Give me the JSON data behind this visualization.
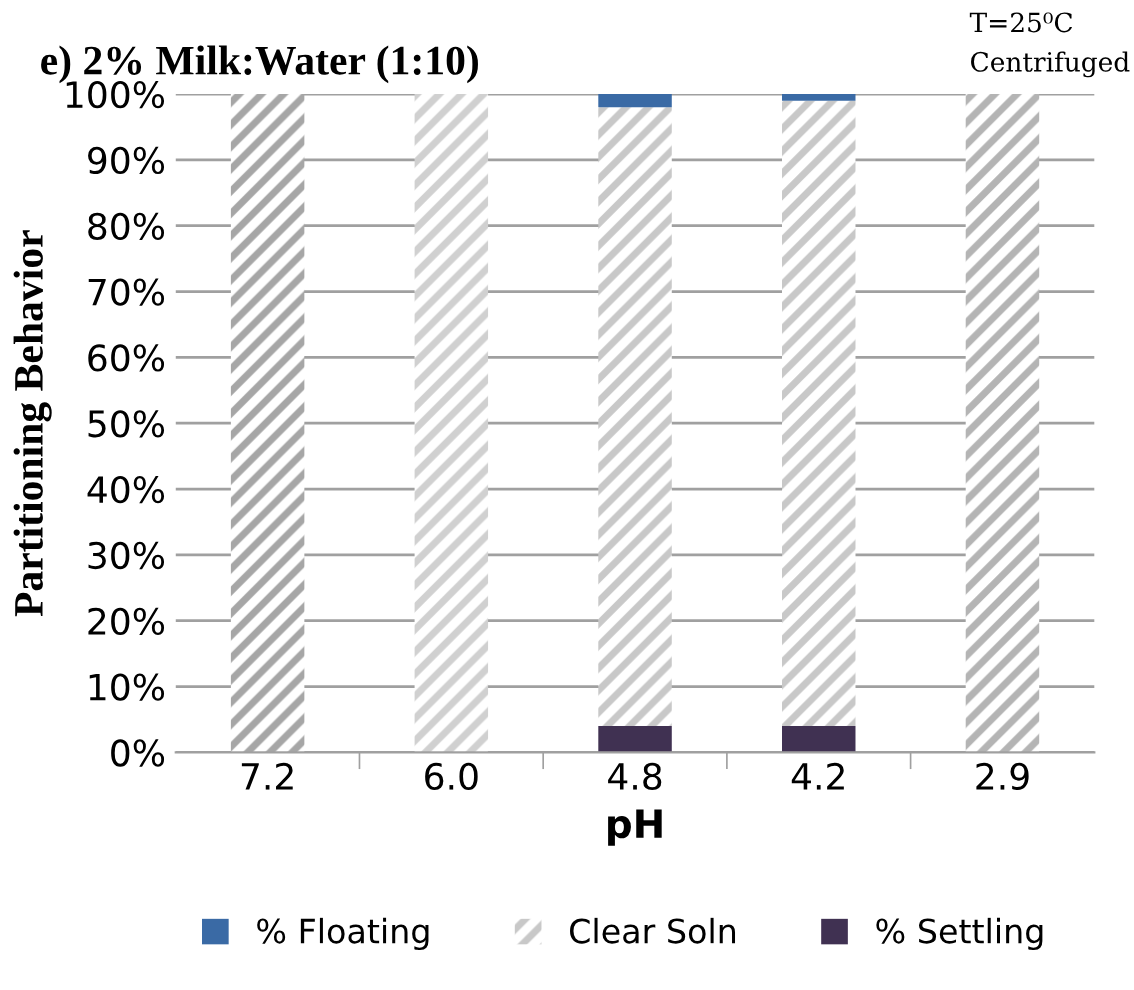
{
  "chart_data": {
    "type": "bar",
    "stacked": true,
    "title": "e) 2% Milk:Water (1:10)",
    "annotations": [
      "T=25⁰C",
      "Centrifuged"
    ],
    "xlabel": "pH",
    "ylabel": "Partitioning Behavior",
    "categories": [
      "7.2",
      "6.0",
      "4.8",
      "4.2",
      "2.9"
    ],
    "series": [
      {
        "name": "% Settling",
        "color": "#403152",
        "values": [
          0,
          0,
          4,
          4,
          0
        ]
      },
      {
        "name": "Clear Soln",
        "color": "#c8c8c8",
        "colors": [
          "#a6a6a6",
          "#d0d0d0",
          "#c8c8c8",
          "#c8c8c8",
          "#b4b4b4"
        ],
        "values": [
          100,
          100,
          94,
          95,
          100
        ]
      },
      {
        "name": "% Floating",
        "color": "#3a6aa5",
        "values": [
          0,
          0,
          2,
          1,
          0
        ]
      }
    ],
    "ylim": [
      0,
      100
    ],
    "yticks": [
      {
        "value": 0,
        "label": "0%"
      },
      {
        "value": 10,
        "label": "10%"
      },
      {
        "value": 20,
        "label": "20%"
      },
      {
        "value": 30,
        "label": "30%"
      },
      {
        "value": 40,
        "label": "40%"
      },
      {
        "value": 50,
        "label": "50%"
      },
      {
        "value": 60,
        "label": "60%"
      },
      {
        "value": 70,
        "label": "70%"
      },
      {
        "value": 80,
        "label": "80%"
      },
      {
        "value": 90,
        "label": "90%"
      },
      {
        "value": 100,
        "label": "100%"
      }
    ],
    "grid": "y",
    "legend": "bottom"
  }
}
